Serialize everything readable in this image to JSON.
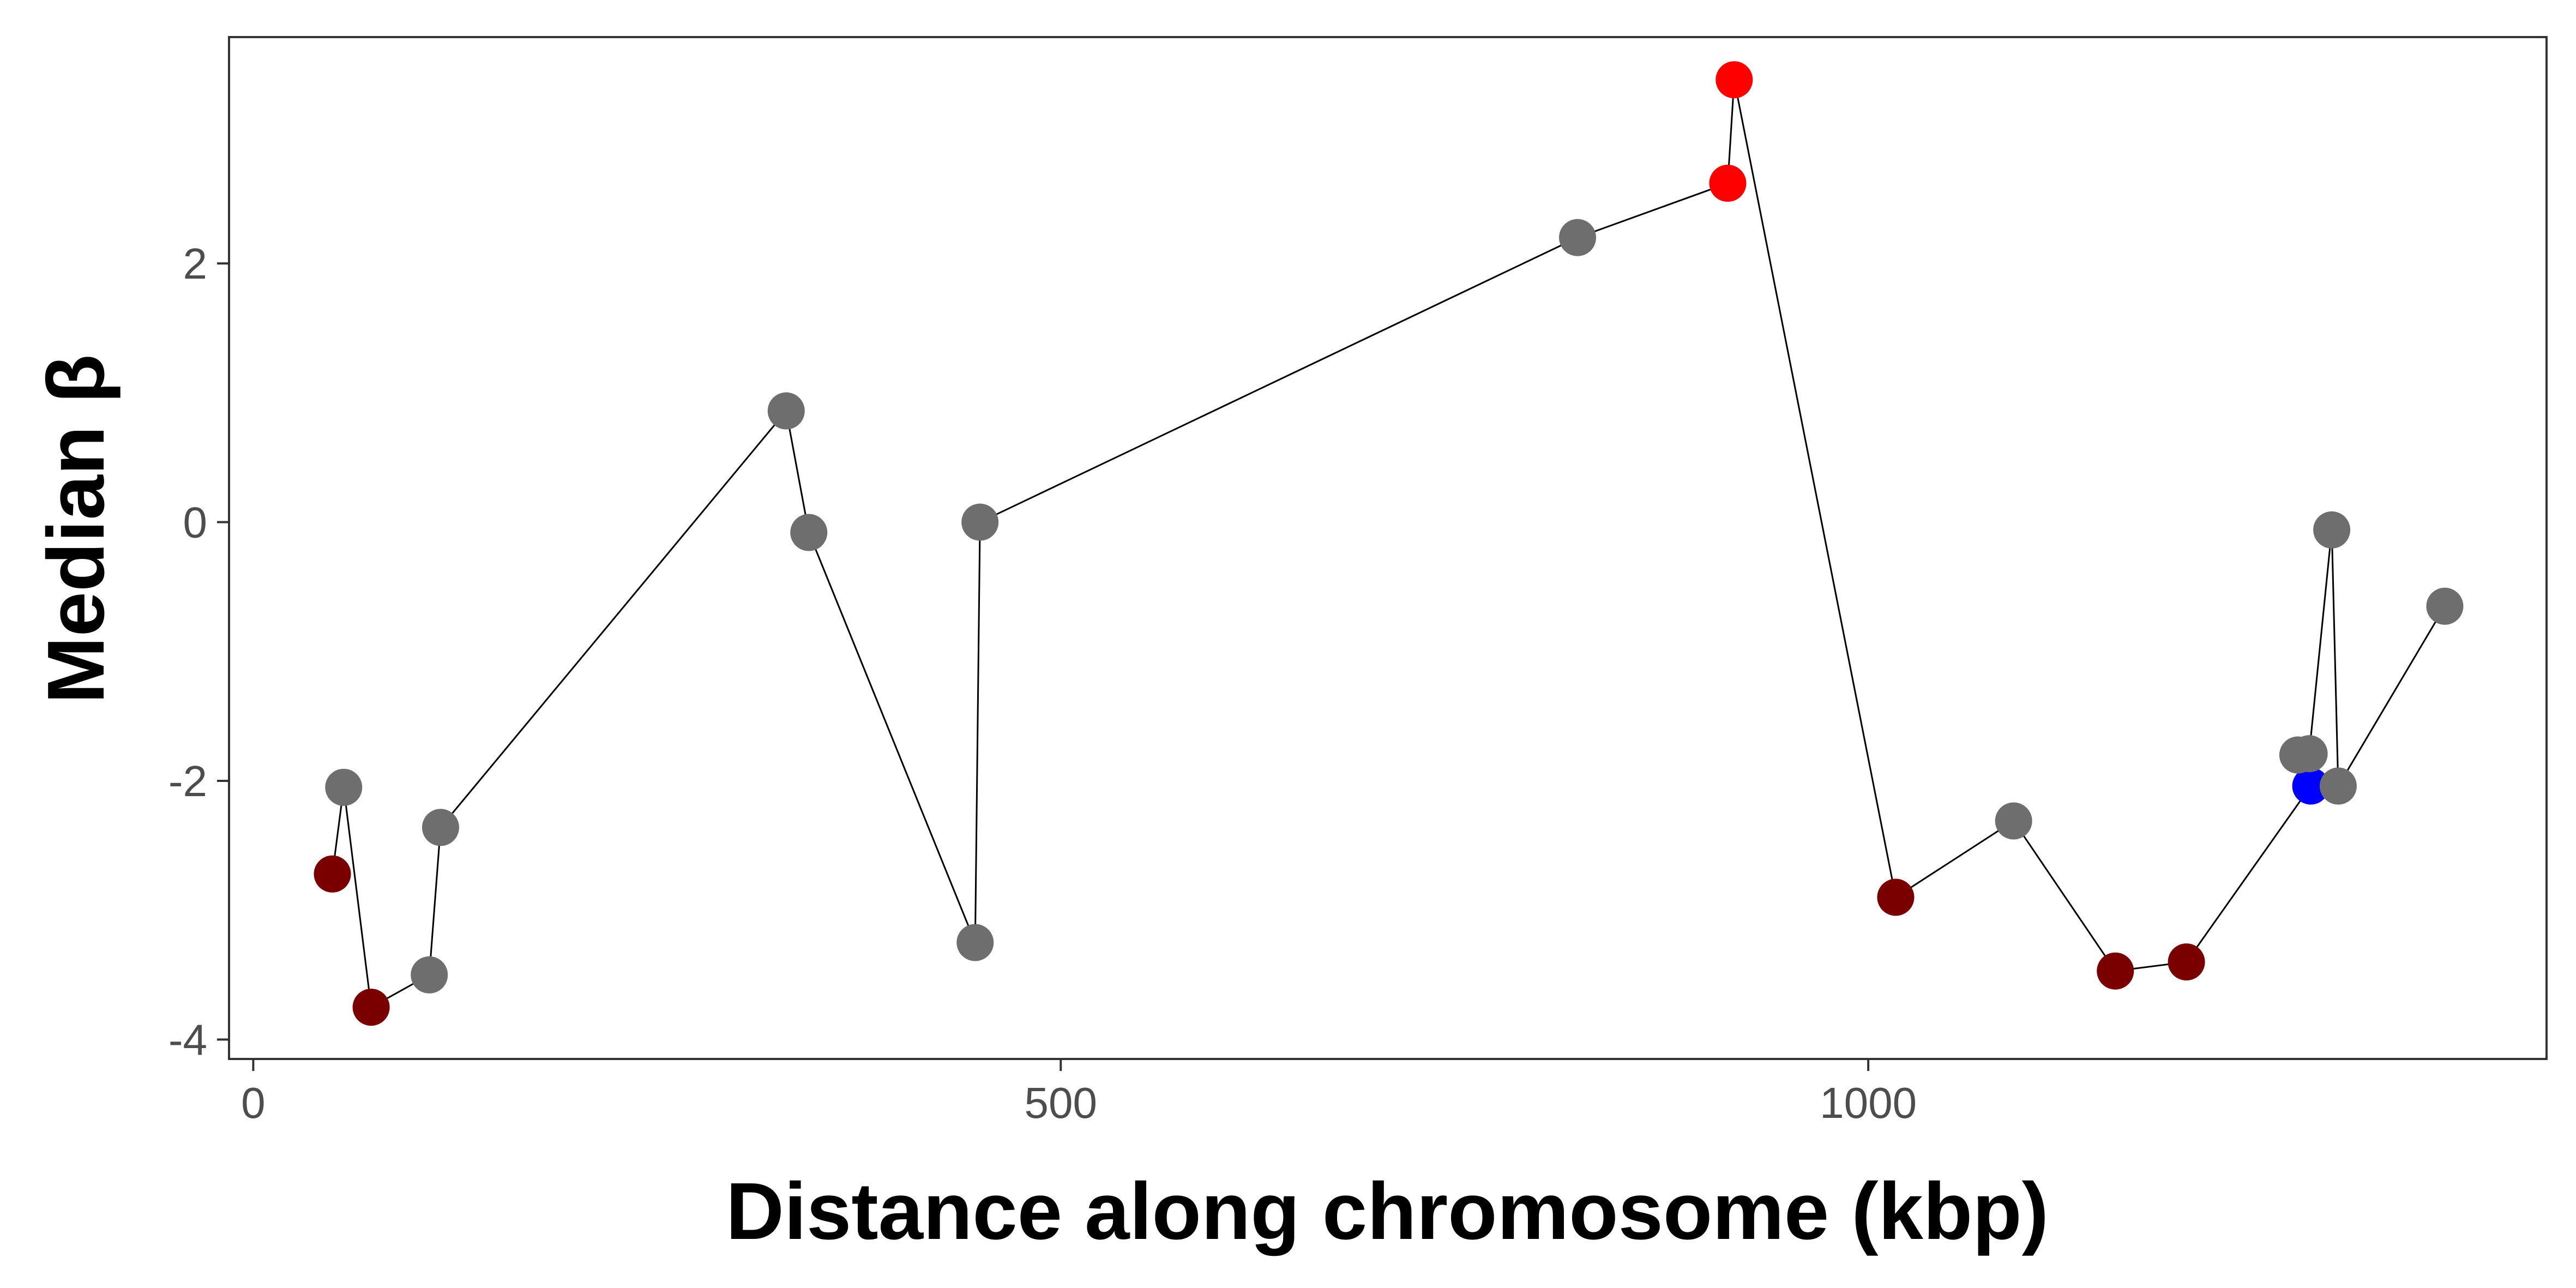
{
  "chart_data": {
    "type": "scatter",
    "connected": true,
    "xlabel": "Distance along chromosome (kbp)",
    "ylabel": "Median β",
    "xlim": [
      -15,
      1420
    ],
    "ylim": [
      -4.15,
      3.75
    ],
    "x_ticks": [
      0,
      500,
      1000
    ],
    "x_tick_labels": [
      "0",
      "500",
      "1000"
    ],
    "y_ticks": [
      -4,
      -2,
      0,
      2
    ],
    "y_tick_labels": [
      "-4",
      "-2",
      "0",
      "2"
    ],
    "grid": false,
    "legend": "none",
    "colors": {
      "default": "#6e6e6e",
      "darkred": "#7a0000",
      "red": "#ff0000",
      "blue": "#0000ff",
      "line": "#000000"
    },
    "points": [
      {
        "x": 49,
        "y": -2.72,
        "color": "darkred"
      },
      {
        "x": 56,
        "y": -2.05,
        "color": "default"
      },
      {
        "x": 73,
        "y": -3.75,
        "color": "darkred"
      },
      {
        "x": 109,
        "y": -3.5,
        "color": "default"
      },
      {
        "x": 116,
        "y": -2.36,
        "color": "default"
      },
      {
        "x": 330,
        "y": 0.86,
        "color": "default"
      },
      {
        "x": 344,
        "y": -0.08,
        "color": "default"
      },
      {
        "x": 447,
        "y": -3.25,
        "color": "default"
      },
      {
        "x": 450,
        "y": 0.0,
        "color": "default"
      },
      {
        "x": 820,
        "y": 2.2,
        "color": "default"
      },
      {
        "x": 913,
        "y": 2.62,
        "color": "red"
      },
      {
        "x": 917,
        "y": 3.42,
        "color": "red"
      },
      {
        "x": 1017,
        "y": -2.9,
        "color": "darkred"
      },
      {
        "x": 1090,
        "y": -2.31,
        "color": "default"
      },
      {
        "x": 1153,
        "y": -3.47,
        "color": "darkred"
      },
      {
        "x": 1197,
        "y": -3.4,
        "color": "darkred"
      },
      {
        "x": 1274,
        "y": -2.04,
        "color": "blue"
      },
      {
        "x": 1266,
        "y": -1.8,
        "color": "default"
      },
      {
        "x": 1273,
        "y": -1.79,
        "color": "default"
      },
      {
        "x": 1287,
        "y": -0.06,
        "color": "default"
      },
      {
        "x": 1291,
        "y": -2.04,
        "color": "default"
      },
      {
        "x": 1357,
        "y": -0.65,
        "color": "default"
      }
    ],
    "path_order": [
      0,
      1,
      2,
      3,
      4,
      5,
      6,
      7,
      8,
      9,
      10,
      11,
      12,
      13,
      14,
      15,
      16,
      18,
      19,
      20,
      21
    ]
  }
}
